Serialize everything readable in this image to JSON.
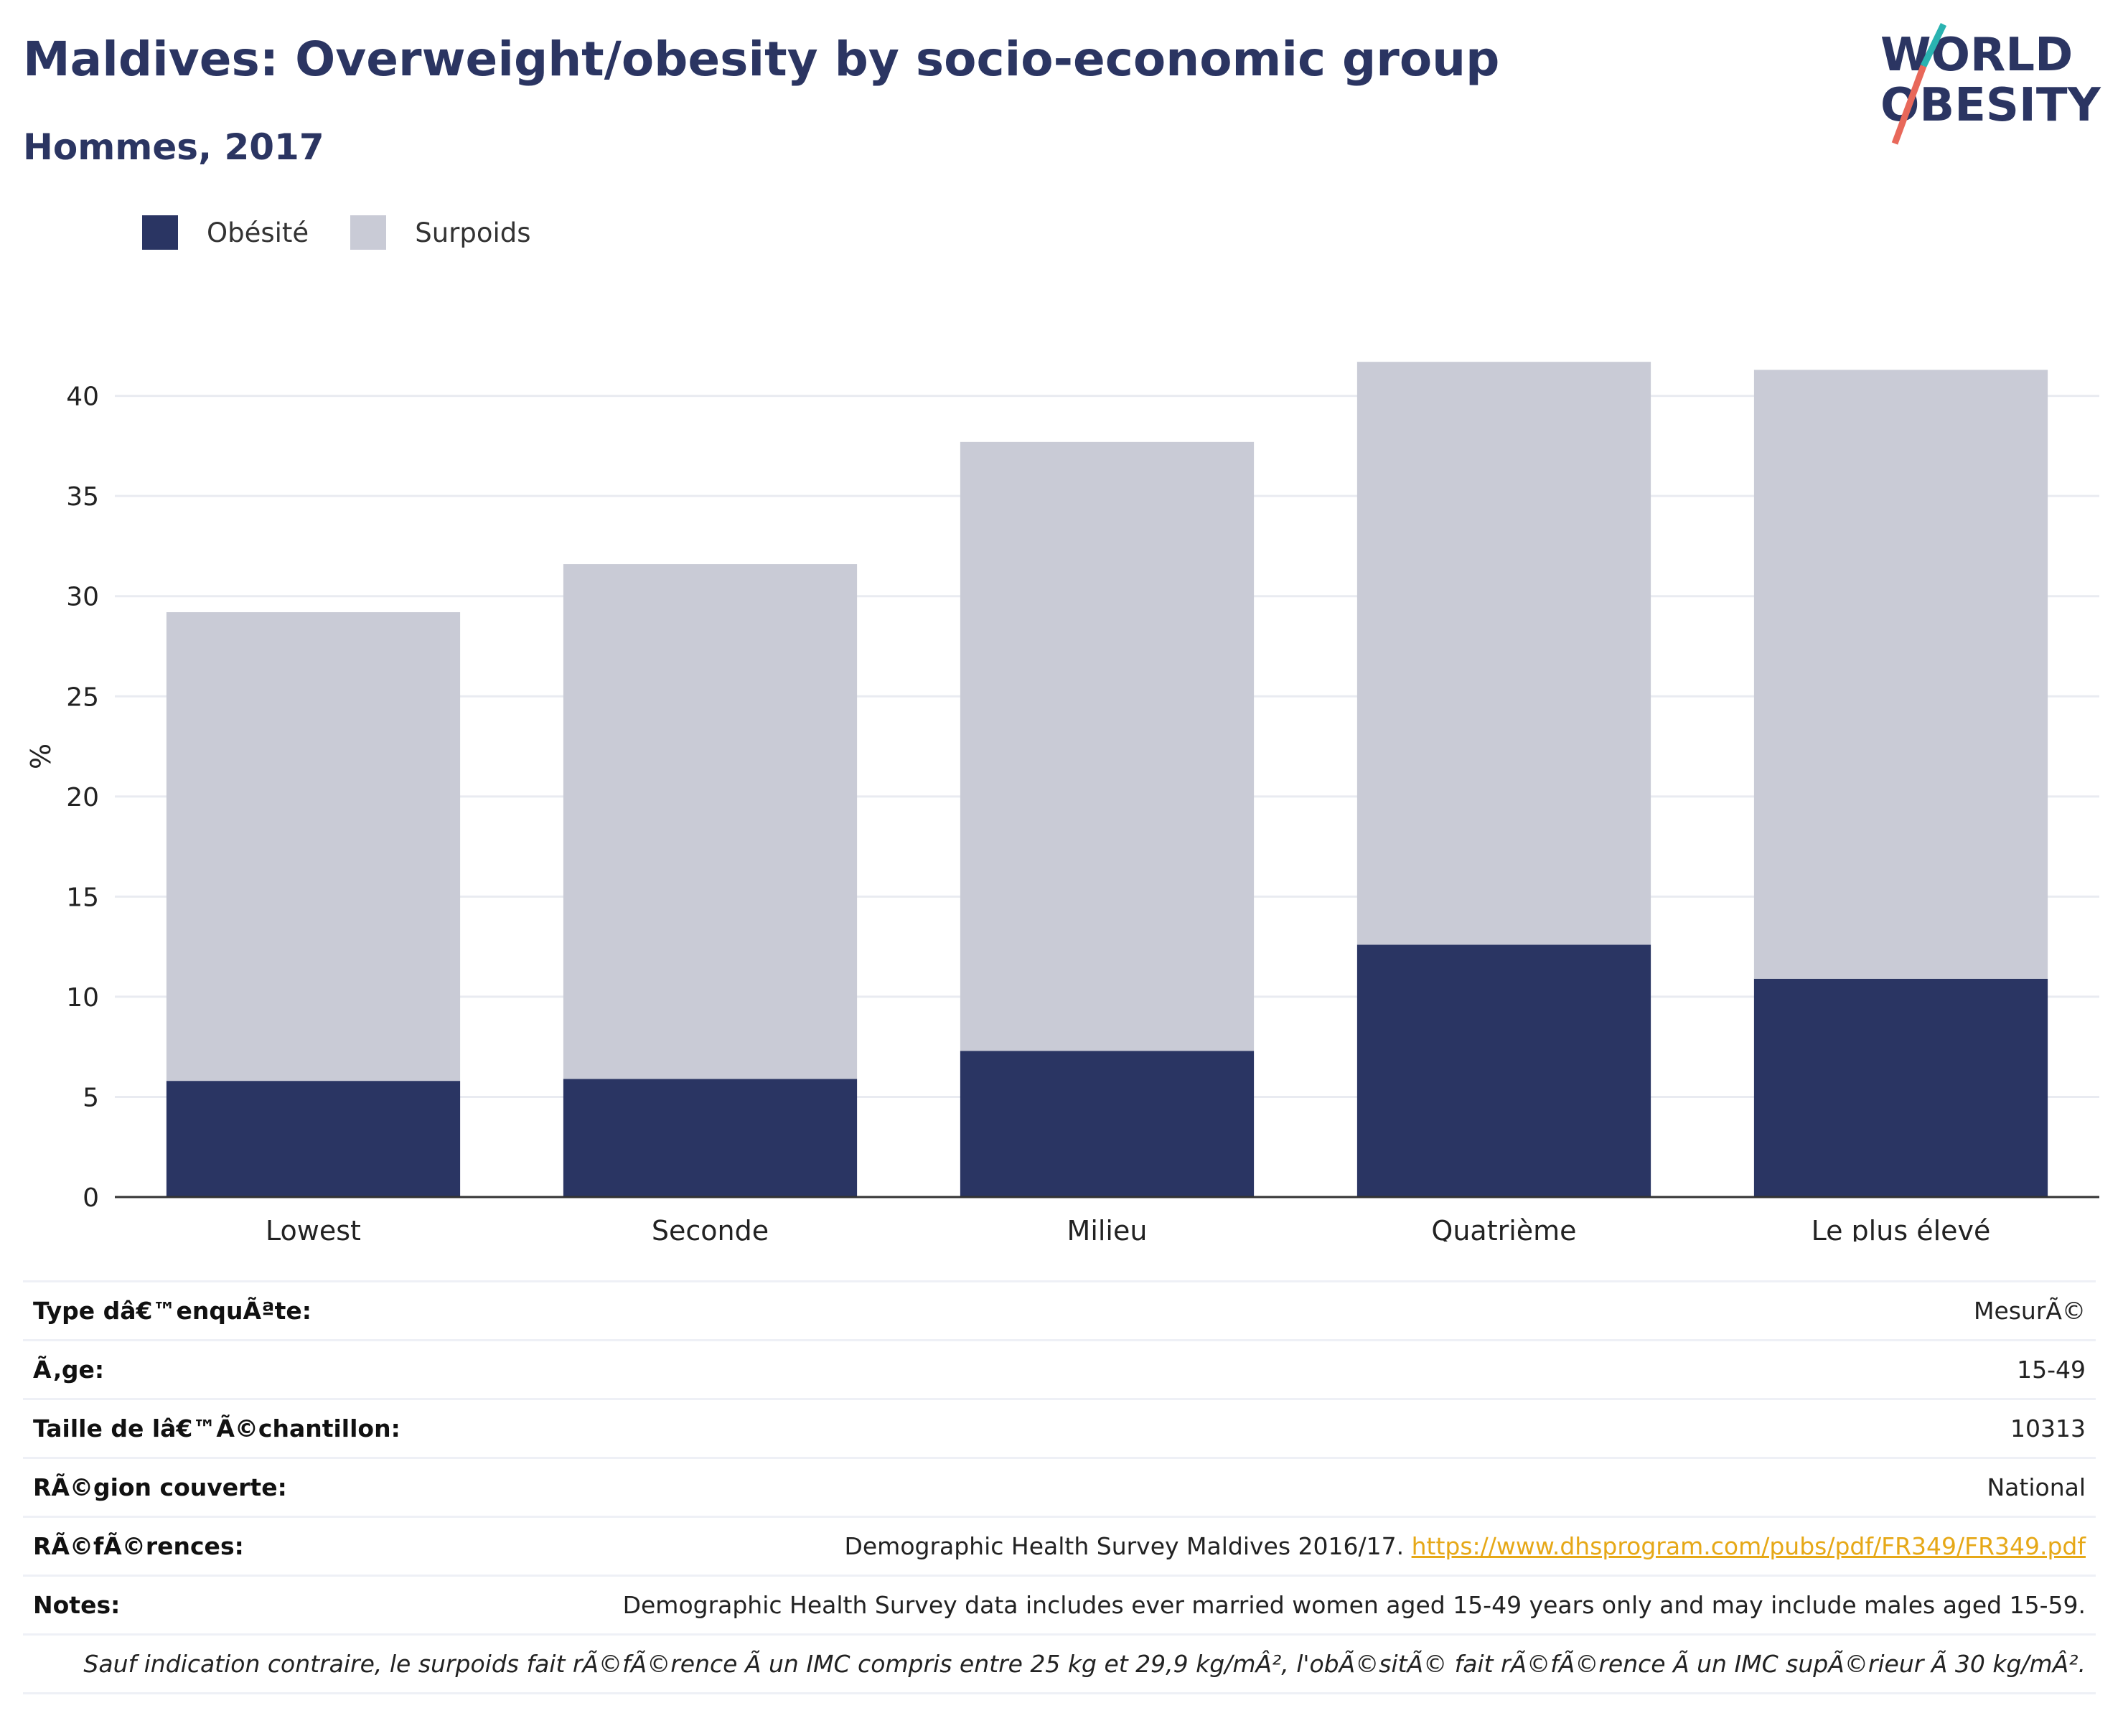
{
  "header": {
    "title": "Maldives: Overweight/obesity by socio-economic group",
    "subtitle": "Hommes, 2017"
  },
  "logo": {
    "line1": "WORLD",
    "line2": "OBESITY"
  },
  "legend": [
    {
      "label": "Obésité",
      "color": "#2a3563"
    },
    {
      "label": "Surpoids",
      "color": "#c9cbd6"
    }
  ],
  "chart_data": {
    "type": "bar",
    "stacked": true,
    "title": "",
    "xlabel": "",
    "ylabel": "%",
    "categories": [
      "Lowest",
      "Seconde",
      "Milieu",
      "Quatrième",
      "Le plus élevé"
    ],
    "series": [
      {
        "name": "Obésité",
        "color": "#2a3563",
        "values": [
          5.8,
          5.9,
          7.3,
          12.6,
          10.9
        ]
      },
      {
        "name": "Surpoids",
        "color": "#c9cbd6",
        "values": [
          23.4,
          25.7,
          30.4,
          29.1,
          30.4
        ]
      }
    ],
    "ylim": [
      0,
      44
    ],
    "yticks": [
      0,
      5,
      10,
      15,
      20,
      25,
      30,
      35,
      40
    ],
    "grid": true,
    "legend_position": "top-left"
  },
  "info": {
    "survey_type": {
      "label": "Type dâ€™enquÃªte:",
      "value": "MesurÃ©"
    },
    "age": {
      "label": "Ã‚ge:",
      "value": "15-49"
    },
    "sample_size": {
      "label": "Taille de lâ€™Ã©chantillon:",
      "value": "10313"
    },
    "region": {
      "label": "RÃ©gion couverte:",
      "value": "National"
    },
    "references": {
      "label": "RÃ©fÃ©rences:",
      "text": "Demographic Health Survey Maldives 2016/17. ",
      "link": "https://www.dhsprogram.com/pubs/pdf/FR349/FR349.pdf"
    },
    "notes": {
      "label": "Notes:",
      "value": "Demographic Health Survey data includes ever married women aged 15-49 years only and may include males aged 15-59."
    },
    "footnote": "Sauf indication contraire, le surpoids fait rÃ©fÃ©rence Ã  un IMC compris entre 25 kg et 29,9 kg/mÂ², l'obÃ©sitÃ© fait rÃ©fÃ©rence Ã  un IMC supÃ©rieur Ã  30 kg/mÂ²."
  }
}
